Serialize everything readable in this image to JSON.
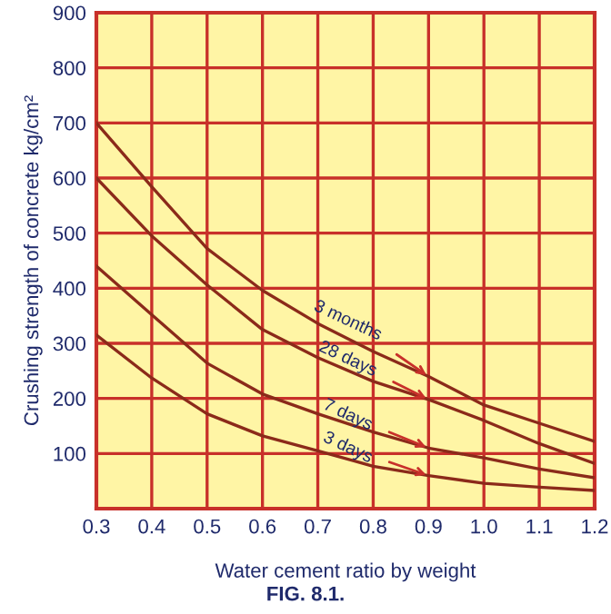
{
  "chart_data": {
    "type": "line",
    "xlabel": "Water cement ratio by weight",
    "ylabel": "Crushing strength of concrete kg/cm²",
    "x": [
      0.3,
      0.4,
      0.5,
      0.6,
      0.7,
      0.8,
      0.9,
      1.0,
      1.1,
      1.2
    ],
    "series": [
      {
        "name": "3 months",
        "color": "#8b2a1a",
        "values": [
          700,
          584,
          472,
          396,
          336,
          285,
          240,
          188,
          155,
          122
        ]
      },
      {
        "name": "28 days",
        "color": "#8b2a1a",
        "values": [
          600,
          495,
          406,
          325,
          274,
          231,
          198,
          160,
          118,
          82
        ]
      },
      {
        "name": "7 days",
        "color": "#8b2a1a",
        "values": [
          440,
          352,
          264,
          208,
          172,
          139,
          110,
          92,
          72,
          56
        ]
      },
      {
        "name": "3 days",
        "color": "#8b2a1a",
        "values": [
          315,
          237,
          172,
          132,
          105,
          77,
          60,
          46,
          39,
          33
        ]
      }
    ],
    "annotations": [
      "FIG. 8.1."
    ],
    "xlim": [
      0.3,
      1.2
    ],
    "ylim": [
      0,
      900
    ],
    "xticks": [
      0.3,
      0.4,
      0.5,
      0.6,
      0.7,
      0.8,
      0.9,
      {
        "value": 1.0,
        "label": "1.0"
      },
      1.1,
      1.2
    ],
    "yticks": [
      {
        "value": 0,
        "label": null
      },
      100,
      200,
      300,
      400,
      500,
      600,
      700,
      800,
      900
    ],
    "grid": true,
    "legend": false,
    "marker": "none",
    "line_style": "solid"
  }
}
